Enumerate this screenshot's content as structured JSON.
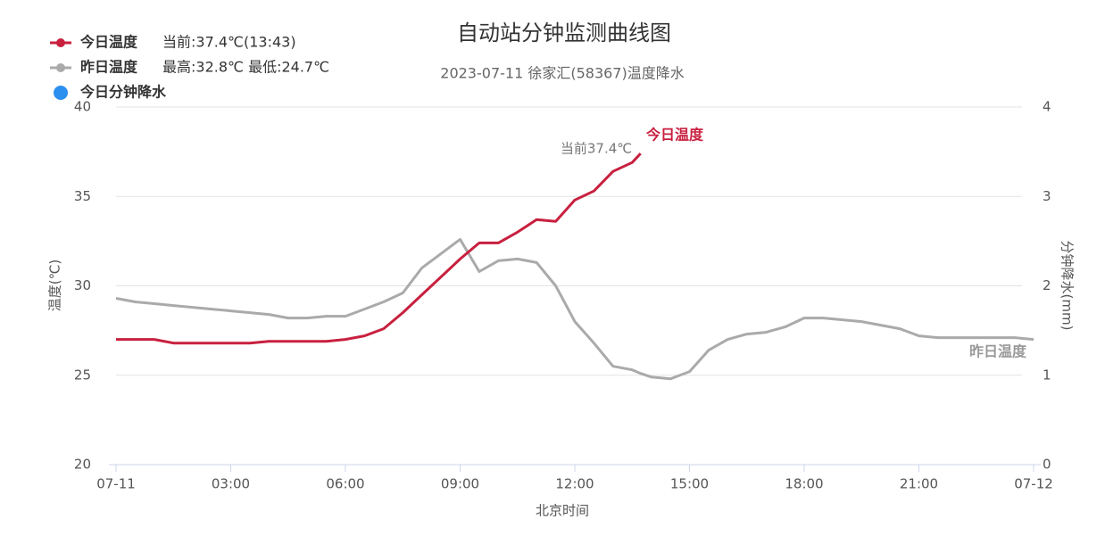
{
  "chart_data": {
    "type": "line",
    "title": "自动站分钟监测曲线图",
    "subtitle": "2023-07-11 徐家汇(58367)温度降水",
    "x_label": "北京时间",
    "y_label": "温度(℃)",
    "y2_label": "分钟降水(mm)",
    "legend_info": [
      "当前:37.4℃(13:43)",
      "最高:32.8℃ 最低:24.7℃"
    ],
    "annotations": [
      "当前37.4℃"
    ],
    "x": [
      0,
      0.5,
      1,
      1.5,
      2,
      2.5,
      3,
      3.5,
      4,
      4.5,
      5,
      5.5,
      6,
      6.5,
      7,
      7.5,
      8,
      8.5,
      9,
      9.5,
      10,
      10.5,
      11,
      11.5,
      12,
      12.5,
      13,
      13.5,
      13.72,
      14,
      14.5,
      15,
      15.5,
      16,
      16.5,
      17,
      17.5,
      18,
      18.5,
      19,
      19.5,
      20,
      20.5,
      21,
      21.5,
      22,
      22.5,
      23,
      23.5,
      24
    ],
    "xlim": [
      0,
      24
    ],
    "xticks": [
      {
        "value": 0,
        "label": "07-11"
      },
      {
        "value": 3,
        "label": "03:00"
      },
      {
        "value": 6,
        "label": "06:00"
      },
      {
        "value": 9,
        "label": "09:00"
      },
      {
        "value": 12,
        "label": "12:00"
      },
      {
        "value": 15,
        "label": "15:00"
      },
      {
        "value": 18,
        "label": "18:00"
      },
      {
        "value": 21,
        "label": "21:00"
      },
      {
        "value": 24,
        "label": "07-12"
      }
    ],
    "ylim": [
      20,
      40
    ],
    "yticks": [
      20,
      25,
      30,
      35,
      40
    ],
    "y2lim": [
      0,
      4
    ],
    "y2ticks": [
      0,
      1,
      2,
      3,
      4
    ],
    "grid": true,
    "series": [
      {
        "name": "今日温度",
        "color": "#c8203f",
        "values": [
          27.0,
          27.0,
          27.0,
          26.8,
          26.8,
          26.8,
          26.8,
          26.8,
          26.9,
          26.9,
          26.9,
          26.9,
          27.0,
          27.2,
          27.6,
          28.5,
          29.5,
          30.5,
          31.5,
          32.4,
          32.4,
          33.0,
          33.7,
          33.6,
          34.8,
          35.3,
          36.4,
          36.9,
          37.4,
          null,
          null,
          null,
          null,
          null,
          null,
          null,
          null,
          null,
          null,
          null,
          null,
          null,
          null,
          null,
          null,
          null,
          null,
          null,
          null,
          null
        ]
      },
      {
        "name": "昨日温度",
        "color": "#aaaaaa",
        "values": [
          29.3,
          29.1,
          29.0,
          28.9,
          28.8,
          28.7,
          28.6,
          28.5,
          28.4,
          28.2,
          28.2,
          28.3,
          28.3,
          28.7,
          29.1,
          29.6,
          31.0,
          31.8,
          32.6,
          30.8,
          31.4,
          31.5,
          31.3,
          30.0,
          28.0,
          26.8,
          25.5,
          25.3,
          25.1,
          24.9,
          24.8,
          25.2,
          26.4,
          27.0,
          27.3,
          27.4,
          27.7,
          28.2,
          28.2,
          28.1,
          28.0,
          27.8,
          27.6,
          27.2,
          27.1,
          27.1,
          27.1,
          27.1,
          27.1,
          27.0
        ]
      },
      {
        "name": "今日分钟降水",
        "color": "#2b8ff0",
        "axis": "y2",
        "values": [
          null,
          null,
          null,
          null,
          null,
          null,
          null,
          null,
          null,
          null,
          null,
          null,
          null,
          null,
          null,
          null,
          null,
          null,
          null,
          null,
          null,
          null,
          null,
          null,
          null,
          null,
          null,
          null,
          null,
          null,
          null,
          null,
          null,
          null,
          null,
          null,
          null,
          null,
          null,
          null,
          null,
          null,
          null,
          null,
          null,
          null,
          null,
          null,
          null,
          null
        ]
      }
    ]
  }
}
